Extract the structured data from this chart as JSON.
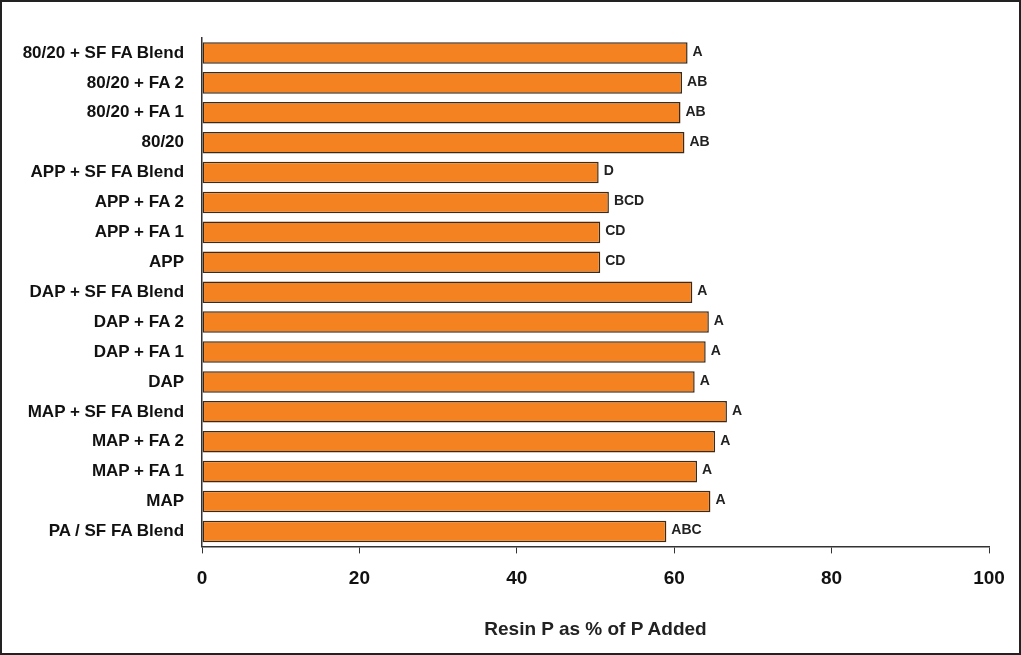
{
  "chart_data": {
    "type": "bar",
    "orientation": "horizontal",
    "xlabel": "Resin P as % of P Added",
    "categories": [
      "80/20 + SF FA Blend",
      "80/20 + FA 2",
      "80/20 + FA 1",
      "80/20",
      "APP + SF FA Blend",
      "APP + FA 2",
      "APP + FA 1",
      "APP",
      "DAP + SF FA Blend",
      "DAP + FA 2",
      "DAP + FA 1",
      "DAP",
      "MAP + SF FA Blend",
      "MAP + FA 2",
      "MAP + FA 1",
      "MAP",
      "PA / SF FA Blend"
    ],
    "values": [
      61.7,
      61.0,
      60.8,
      61.3,
      50.4,
      51.7,
      50.6,
      50.6,
      62.3,
      64.4,
      64.0,
      62.6,
      66.7,
      65.2,
      62.9,
      64.6,
      59.0
    ],
    "value_labels": [
      "A",
      "AB",
      "AB",
      "AB",
      "D",
      "BCD",
      "CD",
      "CD",
      "A",
      "A",
      "A",
      "A",
      "A",
      "A",
      "A",
      "A",
      "ABC"
    ],
    "color": "#f58220",
    "xlim": [
      0,
      100
    ],
    "xticks": [
      0,
      20,
      40,
      60,
      80,
      100
    ],
    "grid": false,
    "legend": false
  }
}
